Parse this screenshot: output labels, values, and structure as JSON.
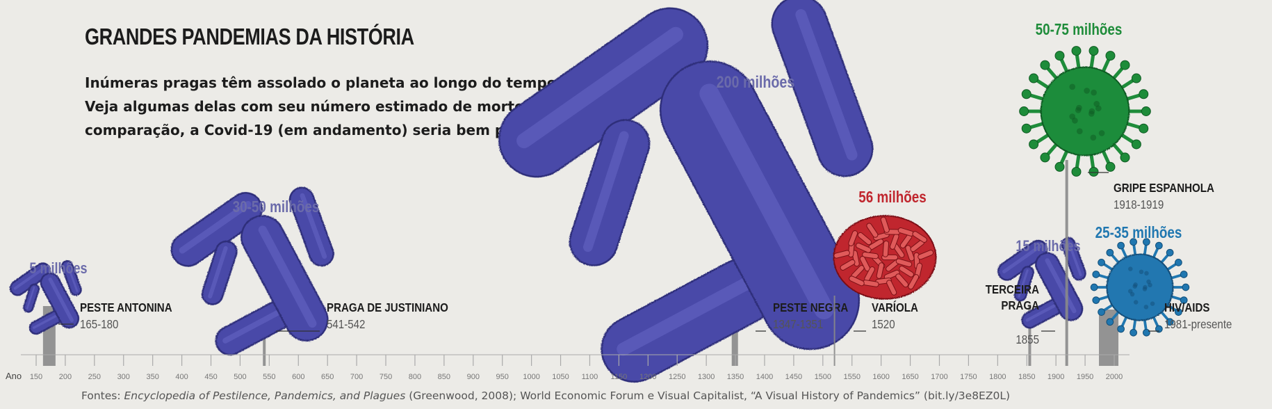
{
  "title": "GRANDES PANDEMIAS DA HISTÓRIA",
  "subtitle_lines": [
    "Inúmeras pragas têm assolado o planeta ao longo do tempo.",
    "Veja algumas delas com seu número estimado de mortes. Em",
    "comparação, a Covid-19 (em andamento) seria bem pequena."
  ],
  "source": {
    "prefix": "Fontes: ",
    "book": "Encyclopedia of Pestilence, Pandemics, and Plagues",
    "rest": " (Greenwood, 2008); World Economic Forum e Visual Capitalist, “A Visual History of Pandemics” (bit.ly/3e8EZ0L)"
  },
  "colors": {
    "bacteria": "#4a4aa8",
    "bacteria_label": "#6b6baa",
    "variola": "#c0262e",
    "gripe": "#1e8c3a",
    "hiv": "#2077b0",
    "text": "#1c1c1c",
    "axis": "#aaaaaa"
  },
  "chart_data": {
    "type": "timeline",
    "x_axis_label": "Ano",
    "x_range": [
      150,
      2000
    ],
    "x_ticks": [
      150,
      200,
      250,
      300,
      350,
      400,
      450,
      500,
      550,
      600,
      650,
      700,
      750,
      800,
      850,
      900,
      950,
      1000,
      1050,
      1100,
      1150,
      1200,
      1250,
      1300,
      1350,
      1400,
      1450,
      1500,
      1550,
      1600,
      1650,
      1700,
      1750,
      1800,
      1850,
      1900,
      1950,
      2000
    ],
    "pandemics": [
      {
        "name": "PESTE ANTONINA",
        "years_label": "165-180",
        "start": 165,
        "end": 180,
        "deaths_label": "5 milhões",
        "deaths_min": 5,
        "deaths_max": 5,
        "icon": "bacteria-icon",
        "color": "bacteria"
      },
      {
        "name": "PRAGA DE JUSTINIANO",
        "years_label": "541-542",
        "start": 541,
        "end": 542,
        "deaths_label": "30-50 milhões",
        "deaths_min": 30,
        "deaths_max": 50,
        "icon": "bacteria-icon",
        "color": "bacteria"
      },
      {
        "name": "PESTE NEGRA",
        "years_label": "1347-1351",
        "start": 1347,
        "end": 1351,
        "deaths_label": "200 milhões",
        "deaths_min": 200,
        "deaths_max": 200,
        "icon": "bacteria-icon",
        "color": "bacteria"
      },
      {
        "name": "VARÍOLA",
        "years_label": "1520",
        "start": 1520,
        "end": 1520,
        "deaths_label": "56 milhões",
        "deaths_min": 56,
        "deaths_max": 56,
        "icon": "virus-cluster-icon",
        "color": "variola"
      },
      {
        "name": "TERCEIRA PRAGA",
        "years_label": "1855",
        "start": 1855,
        "end": 1855,
        "deaths_label": "15 milhões",
        "deaths_min": 15,
        "deaths_max": 15,
        "icon": "bacteria-icon",
        "color": "bacteria"
      },
      {
        "name": "GRIPE ESPANHOLA",
        "years_label": "1918-1919",
        "start": 1918,
        "end": 1919,
        "deaths_label": "50-75 milhões",
        "deaths_min": 50,
        "deaths_max": 75,
        "icon": "virus-icon",
        "color": "gripe"
      },
      {
        "name": "HIV/AIDS",
        "years_label": "1981-presente",
        "start": 1981,
        "end": 2020,
        "deaths_label": "25-35 milhões",
        "deaths_min": 25,
        "deaths_max": 35,
        "icon": "virus-icon",
        "color": "hiv"
      }
    ]
  }
}
